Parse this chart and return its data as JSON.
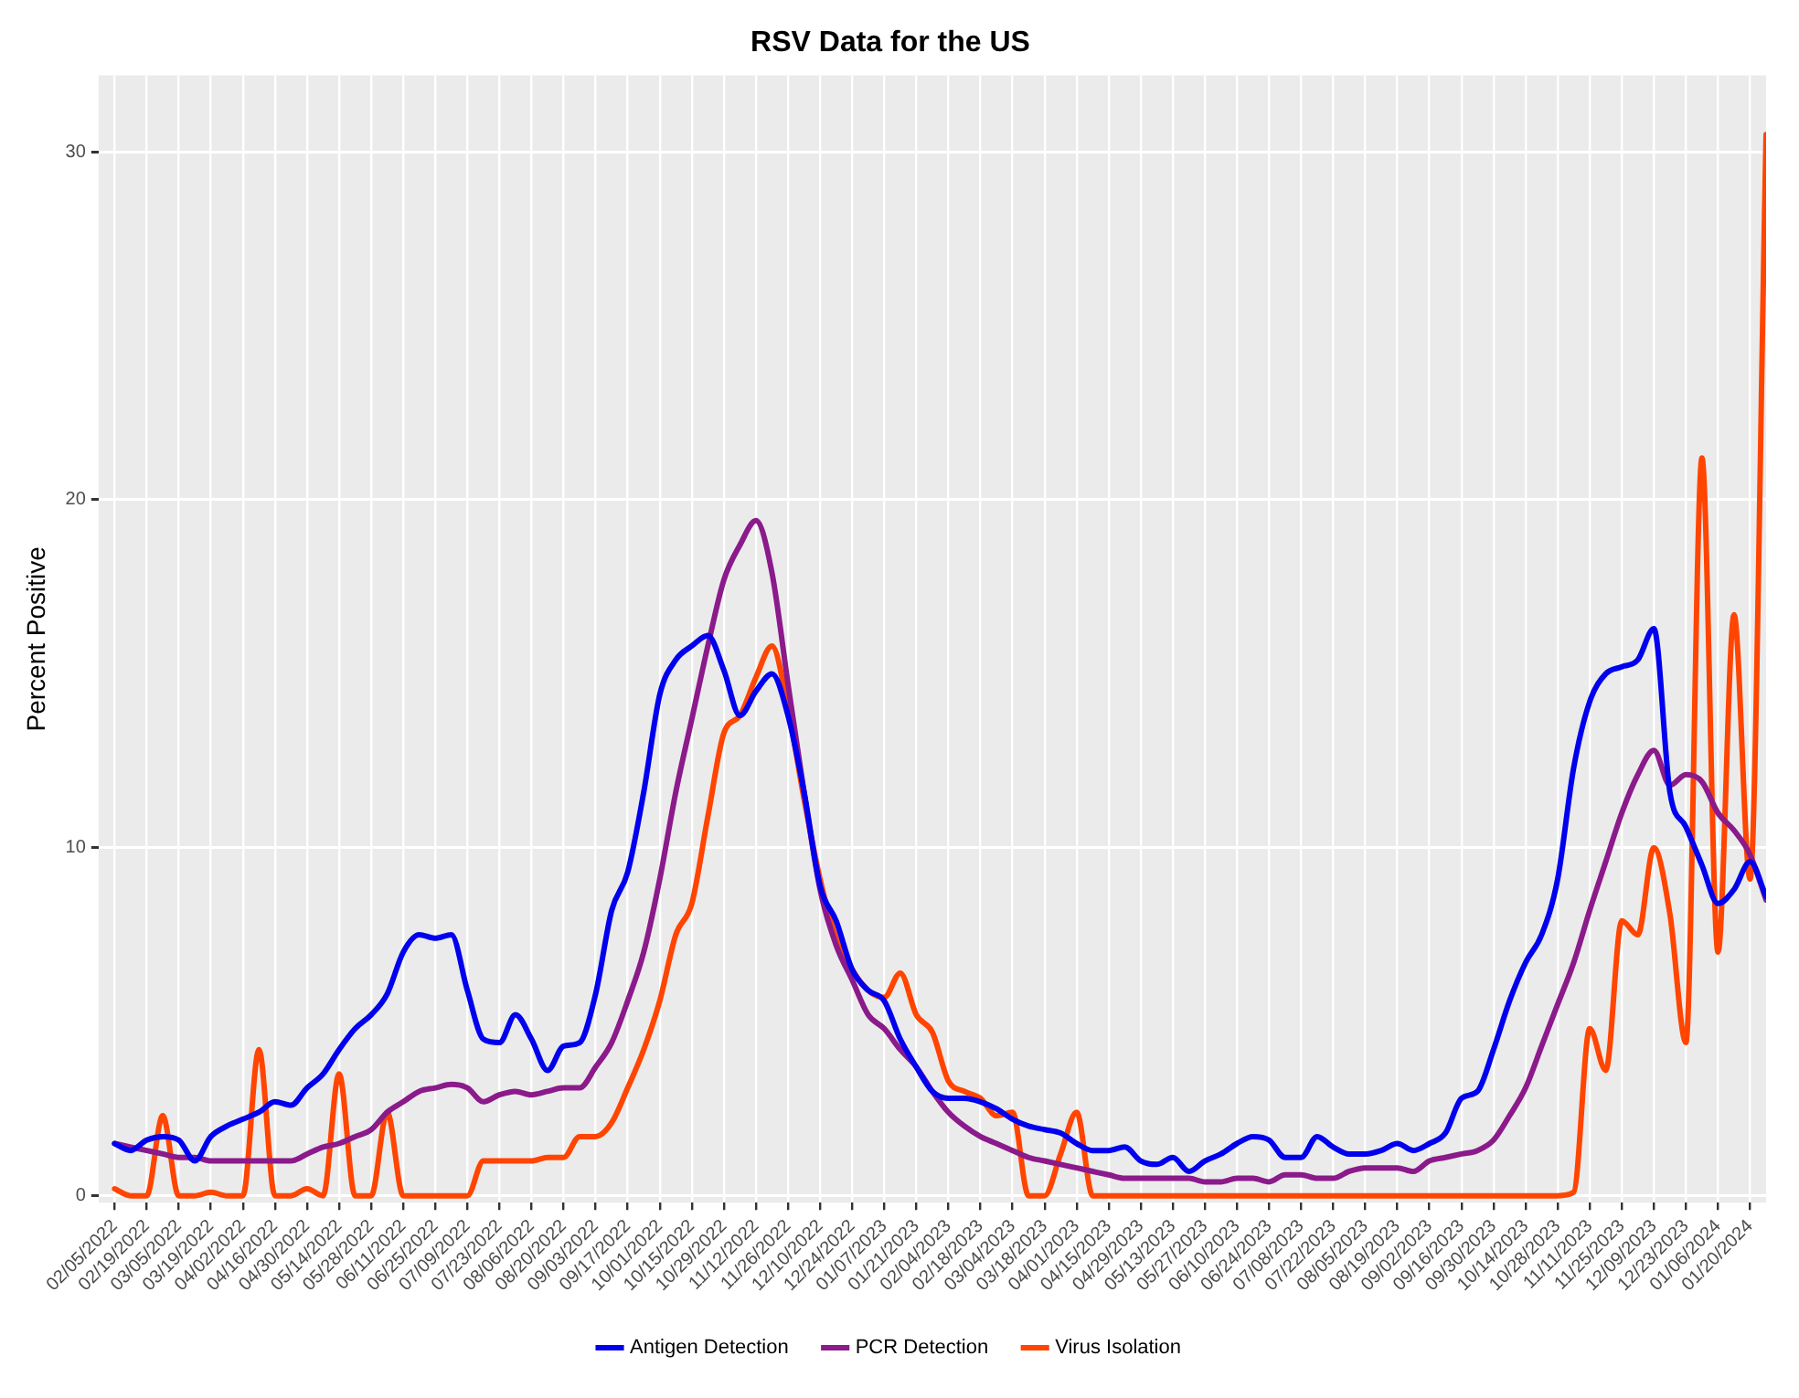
{
  "chart_data": {
    "type": "line",
    "title": "RSV Data for the US",
    "ylabel": "Percent Positive",
    "x": [
      "2022-02-05",
      "2022-02-12",
      "2022-02-19",
      "2022-02-26",
      "2022-03-05",
      "2022-03-12",
      "2022-03-19",
      "2022-03-26",
      "2022-04-02",
      "2022-04-09",
      "2022-04-16",
      "2022-04-23",
      "2022-04-30",
      "2022-05-07",
      "2022-05-14",
      "2022-05-21",
      "2022-05-28",
      "2022-06-04",
      "2022-06-11",
      "2022-06-18",
      "2022-06-25",
      "2022-07-02",
      "2022-07-09",
      "2022-07-16",
      "2022-07-23",
      "2022-07-30",
      "2022-08-06",
      "2022-08-13",
      "2022-08-20",
      "2022-08-27",
      "2022-09-03",
      "2022-09-10",
      "2022-09-17",
      "2022-09-24",
      "2022-10-01",
      "2022-10-08",
      "2022-10-15",
      "2022-10-22",
      "2022-10-29",
      "2022-11-05",
      "2022-11-12",
      "2022-11-19",
      "2022-11-26",
      "2022-12-03",
      "2022-12-10",
      "2022-12-17",
      "2022-12-24",
      "2022-12-31",
      "2023-01-07",
      "2023-01-14",
      "2023-01-21",
      "2023-01-28",
      "2023-02-04",
      "2023-02-11",
      "2023-02-18",
      "2023-02-25",
      "2023-03-04",
      "2023-03-11",
      "2023-03-18",
      "2023-03-25",
      "2023-04-01",
      "2023-04-08",
      "2023-04-15",
      "2023-04-22",
      "2023-04-29",
      "2023-05-06",
      "2023-05-13",
      "2023-05-20",
      "2023-05-27",
      "2023-06-03",
      "2023-06-10",
      "2023-06-17",
      "2023-06-24",
      "2023-07-01",
      "2023-07-08",
      "2023-07-15",
      "2023-07-22",
      "2023-07-29",
      "2023-08-05",
      "2023-08-12",
      "2023-08-19",
      "2023-08-26",
      "2023-09-02",
      "2023-09-09",
      "2023-09-16",
      "2023-09-23",
      "2023-09-30",
      "2023-10-07",
      "2023-10-14",
      "2023-10-21",
      "2023-10-28",
      "2023-11-04",
      "2023-11-11",
      "2023-11-18",
      "2023-11-25",
      "2023-12-02",
      "2023-12-09",
      "2023-12-16",
      "2023-12-23",
      "2023-12-30",
      "2024-01-06",
      "2024-01-13",
      "2024-01-20",
      "2024-01-27"
    ],
    "series": [
      {
        "name": "Antigen Detection",
        "color": "#0000ee",
        "values": [
          1.5,
          1.3,
          1.6,
          1.7,
          1.6,
          1.0,
          1.7,
          2.0,
          2.2,
          2.4,
          2.7,
          2.6,
          3.1,
          3.5,
          4.2,
          4.8,
          5.2,
          5.8,
          7.0,
          7.5,
          7.4,
          7.5,
          5.9,
          4.5,
          4.4,
          5.2,
          4.5,
          3.6,
          4.3,
          4.4,
          5.8,
          8.2,
          9.3,
          11.6,
          14.4,
          15.4,
          15.8,
          16.1,
          15.1,
          13.8,
          14.5,
          15.0,
          13.8,
          11.6,
          8.9,
          7.9,
          6.5,
          5.9,
          5.6,
          4.5,
          3.7,
          3.0,
          2.8,
          2.8,
          2.7,
          2.5,
          2.2,
          2.0,
          1.9,
          1.8,
          1.5,
          1.3,
          1.3,
          1.4,
          1.0,
          0.9,
          1.1,
          0.7,
          1.0,
          1.2,
          1.5,
          1.7,
          1.6,
          1.1,
          1.1,
          1.7,
          1.4,
          1.2,
          1.2,
          1.3,
          1.5,
          1.3,
          1.5,
          1.8,
          2.8,
          3.0,
          4.2,
          5.6,
          6.7,
          7.5,
          9.1,
          12.3,
          14.2,
          15.0,
          15.2,
          15.4,
          16.3,
          11.6,
          10.6,
          9.5,
          8.4,
          8.8,
          9.6,
          8.6
        ]
      },
      {
        "name": "PCR Detection",
        "color": "#8b1a8b",
        "values": [
          1.5,
          1.4,
          1.3,
          1.2,
          1.1,
          1.1,
          1.0,
          1.0,
          1.0,
          1.0,
          1.0,
          1.0,
          1.2,
          1.4,
          1.5,
          1.7,
          1.9,
          2.4,
          2.7,
          3.0,
          3.1,
          3.2,
          3.1,
          2.7,
          2.9,
          3.0,
          2.9,
          3.0,
          3.1,
          3.1,
          3.7,
          4.4,
          5.6,
          7.0,
          9.1,
          11.6,
          13.7,
          15.8,
          17.7,
          18.7,
          19.4,
          17.9,
          14.7,
          11.6,
          8.8,
          7.2,
          6.2,
          5.2,
          4.8,
          4.2,
          3.7,
          3.0,
          2.4,
          2.0,
          1.7,
          1.5,
          1.3,
          1.1,
          1.0,
          0.9,
          0.8,
          0.7,
          0.6,
          0.5,
          0.5,
          0.5,
          0.5,
          0.5,
          0.4,
          0.4,
          0.5,
          0.5,
          0.4,
          0.6,
          0.6,
          0.5,
          0.5,
          0.7,
          0.8,
          0.8,
          0.8,
          0.7,
          1.0,
          1.1,
          1.2,
          1.3,
          1.6,
          2.3,
          3.1,
          4.3,
          5.5,
          6.7,
          8.2,
          9.6,
          11.0,
          12.1,
          12.8,
          11.8,
          12.1,
          11.9,
          11.0,
          10.5,
          9.8,
          8.5
        ]
      },
      {
        "name": "Virus Isolation",
        "color": "#ff4500",
        "values": [
          0.2,
          0,
          0,
          2.3,
          0,
          0,
          0.1,
          0,
          0,
          4.2,
          0,
          0,
          0.2,
          0,
          3.5,
          0,
          0,
          2.4,
          0,
          0,
          0,
          0,
          0,
          1.0,
          1.0,
          1.0,
          1.0,
          1.1,
          1.1,
          1.7,
          1.7,
          2.1,
          3.1,
          4.2,
          5.6,
          7.5,
          8.4,
          10.9,
          13.3,
          13.8,
          14.9,
          15.8,
          14.0,
          11.4,
          9.1,
          7.4,
          6.5,
          5.9,
          5.7,
          6.4,
          5.2,
          4.7,
          3.3,
          3.0,
          2.8,
          2.3,
          2.4,
          0,
          0,
          1.2,
          2.4,
          0,
          0,
          0,
          0,
          0,
          0,
          0,
          0,
          0,
          0,
          0,
          0,
          0,
          0,
          0,
          0,
          0,
          0,
          0,
          0,
          0,
          0,
          0,
          0,
          0,
          0,
          0,
          0,
          0,
          0,
          0.1,
          4.8,
          3.6,
          7.9,
          7.5,
          10.0,
          8.1,
          4.4,
          21.2,
          7.0,
          16.7,
          9.1,
          30.5
        ]
      }
    ],
    "xlim": [
      "2022-01-29",
      "2024-01-27"
    ],
    "xticks": [
      {
        "value": "2022-02-05",
        "label": "02/05/2022"
      },
      {
        "value": "2022-02-19",
        "label": "02/19/2022"
      },
      {
        "value": "2022-03-05",
        "label": "03/05/2022"
      },
      {
        "value": "2022-03-19",
        "label": "03/19/2022"
      },
      {
        "value": "2022-04-02",
        "label": "04/02/2022"
      },
      {
        "value": "2022-04-16",
        "label": "04/16/2022"
      },
      {
        "value": "2022-04-30",
        "label": "04/30/2022"
      },
      {
        "value": "2022-05-14",
        "label": "05/14/2022"
      },
      {
        "value": "2022-05-28",
        "label": "05/28/2022"
      },
      {
        "value": "2022-06-11",
        "label": "06/11/2022"
      },
      {
        "value": "2022-06-25",
        "label": "06/25/2022"
      },
      {
        "value": "2022-07-09",
        "label": "07/09/2022"
      },
      {
        "value": "2022-07-23",
        "label": "07/23/2022"
      },
      {
        "value": "2022-08-06",
        "label": "08/06/2022"
      },
      {
        "value": "2022-08-20",
        "label": "08/20/2022"
      },
      {
        "value": "2022-09-03",
        "label": "09/03/2022"
      },
      {
        "value": "2022-09-17",
        "label": "09/17/2022"
      },
      {
        "value": "2022-10-01",
        "label": "10/01/2022"
      },
      {
        "value": "2022-10-15",
        "label": "10/15/2022"
      },
      {
        "value": "2022-10-29",
        "label": "10/29/2022"
      },
      {
        "value": "2022-11-12",
        "label": "11/12/2022"
      },
      {
        "value": "2022-11-26",
        "label": "11/26/2022"
      },
      {
        "value": "2022-12-10",
        "label": "12/10/2022"
      },
      {
        "value": "2022-12-24",
        "label": "12/24/2022"
      },
      {
        "value": "2023-01-07",
        "label": "01/07/2023"
      },
      {
        "value": "2023-01-21",
        "label": "01/21/2023"
      },
      {
        "value": "2023-02-04",
        "label": "02/04/2023"
      },
      {
        "value": "2023-02-18",
        "label": "02/18/2023"
      },
      {
        "value": "2023-03-04",
        "label": "03/04/2023"
      },
      {
        "value": "2023-03-18",
        "label": "03/18/2023"
      },
      {
        "value": "2023-04-01",
        "label": "04/01/2023"
      },
      {
        "value": "2023-04-15",
        "label": "04/15/2023"
      },
      {
        "value": "2023-04-29",
        "label": "04/29/2023"
      },
      {
        "value": "2023-05-13",
        "label": "05/13/2023"
      },
      {
        "value": "2023-05-27",
        "label": "05/27/2023"
      },
      {
        "value": "2023-06-10",
        "label": "06/10/2023"
      },
      {
        "value": "2023-06-24",
        "label": "06/24/2023"
      },
      {
        "value": "2023-07-08",
        "label": "07/08/2023"
      },
      {
        "value": "2023-07-22",
        "label": "07/22/2023"
      },
      {
        "value": "2023-08-05",
        "label": "08/05/2023"
      },
      {
        "value": "2023-08-19",
        "label": "08/19/2023"
      },
      {
        "value": "2023-09-02",
        "label": "09/02/2023"
      },
      {
        "value": "2023-09-16",
        "label": "09/16/2023"
      },
      {
        "value": "2023-09-30",
        "label": "09/30/2023"
      },
      {
        "value": "2023-10-14",
        "label": "10/14/2023"
      },
      {
        "value": "2023-10-28",
        "label": "10/28/2023"
      },
      {
        "value": "2023-11-11",
        "label": "11/11/2023"
      },
      {
        "value": "2023-11-25",
        "label": "11/25/2023"
      },
      {
        "value": "2023-12-09",
        "label": "12/09/2023"
      },
      {
        "value": "2023-12-23",
        "label": "12/23/2023"
      },
      {
        "value": "2024-01-06",
        "label": "01/06/2024"
      },
      {
        "value": "2024-01-20",
        "label": "01/20/2024"
      }
    ],
    "ylim": [
      -0.2,
      32.2
    ],
    "yticks": [
      0,
      10,
      20,
      30
    ],
    "grid": true,
    "legend": "bottom",
    "marker": "none",
    "line_style": "solid"
  }
}
